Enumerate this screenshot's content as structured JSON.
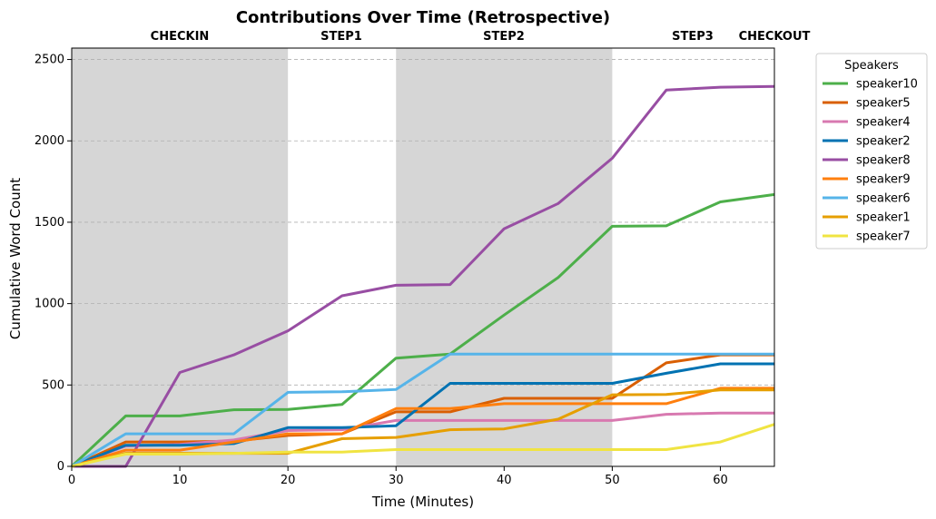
{
  "chart_data": {
    "type": "line",
    "title": "Contributions Over Time (Retrospective)",
    "xlabel": "Time (Minutes)",
    "ylabel": "Cumulative Word Count",
    "xlim": [
      0,
      65
    ],
    "ylim": [
      0,
      2570
    ],
    "xticks": [
      0,
      10,
      20,
      30,
      40,
      50,
      60
    ],
    "yticks": [
      0,
      500,
      1000,
      1500,
      2000,
      2500
    ],
    "grid": "y-dashed",
    "legend_title": "Speakers",
    "legend_placement": "outside-right-top",
    "phases": [
      {
        "name": "CHECKIN",
        "start": 0,
        "end": 20,
        "shaded": true
      },
      {
        "name": "STEP1",
        "start": 20,
        "end": 30,
        "shaded": false
      },
      {
        "name": "STEP2",
        "start": 30,
        "end": 50,
        "shaded": true
      },
      {
        "name": "STEP3",
        "start": 50,
        "end": 60,
        "shaded": false
      },
      {
        "name": "CHECKOUT",
        "start": 60,
        "end": 65,
        "shaded": false
      }
    ],
    "phase_shade_color": "#d6d6d6",
    "x": [
      0,
      5,
      10,
      15,
      20,
      25,
      30,
      35,
      40,
      45,
      50,
      55,
      60,
      65
    ],
    "series": [
      {
        "name": "speaker10",
        "color": "#4daf4a",
        "values": [
          0,
          310,
          310,
          348,
          350,
          380,
          665,
          690,
          930,
          1160,
          1475,
          1478,
          1625,
          1670
        ]
      },
      {
        "name": "speaker5",
        "color": "#d95f02",
        "values": [
          0,
          150,
          150,
          155,
          190,
          200,
          335,
          335,
          418,
          418,
          418,
          636,
          685,
          685
        ]
      },
      {
        "name": "speaker4",
        "color": "#d879b0",
        "values": [
          0,
          125,
          135,
          162,
          220,
          225,
          282,
          282,
          282,
          282,
          282,
          320,
          328,
          328
        ]
      },
      {
        "name": "speaker2",
        "color": "#0072b2",
        "values": [
          0,
          130,
          130,
          140,
          238,
          238,
          250,
          510,
          510,
          510,
          510,
          572,
          630,
          630
        ]
      },
      {
        "name": "speaker8",
        "color": "#984ea3",
        "values": [
          0,
          0,
          577,
          685,
          833,
          1048,
          1113,
          1117,
          1460,
          1615,
          1893,
          2312,
          2330,
          2335
        ]
      },
      {
        "name": "speaker9",
        "color": "#ff7f0e",
        "values": [
          0,
          100,
          100,
          150,
          200,
          200,
          355,
          355,
          385,
          385,
          385,
          385,
          480,
          480
        ]
      },
      {
        "name": "speaker6",
        "color": "#56b4e9",
        "values": [
          0,
          200,
          200,
          200,
          455,
          458,
          472,
          690,
          690,
          690,
          690,
          690,
          690,
          690
        ]
      },
      {
        "name": "speaker1",
        "color": "#e69f00",
        "values": [
          0,
          80,
          80,
          80,
          80,
          170,
          178,
          225,
          230,
          290,
          440,
          442,
          470,
          470
        ]
      },
      {
        "name": "speaker7",
        "color": "#f0e442",
        "values": [
          0,
          75,
          75,
          80,
          88,
          88,
          103,
          103,
          103,
          103,
          103,
          103,
          150,
          258
        ]
      }
    ]
  }
}
